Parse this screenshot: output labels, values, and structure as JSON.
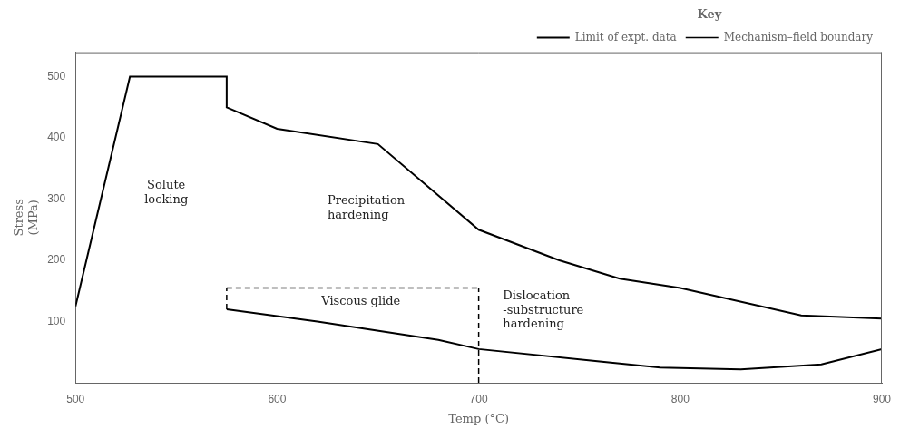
{
  "chart_data": {
    "type": "line",
    "xlabel": "Temp (°C)",
    "ylabel": "Stress\n(MPa)",
    "xlim": [
      500,
      900
    ],
    "xticks": [
      500,
      600,
      700,
      800,
      900
    ],
    "ylim": [
      0,
      540
    ],
    "yticks": [
      100,
      200,
      300,
      400,
      500
    ],
    "grid": false,
    "legend": "upper right",
    "legend_title": "Key",
    "series": [
      {
        "name": "Limit of expt. data",
        "color": "#000000",
        "line_style": "solid",
        "x": [
          500,
          527,
          575,
          575,
          600,
          650,
          700,
          740,
          770,
          800,
          860,
          900
        ],
        "values": [
          125,
          500,
          500,
          450,
          415,
          390,
          250,
          200,
          170,
          155,
          110,
          105
        ]
      },
      {
        "name": "Limit of expt. data",
        "color": "#000000",
        "line_style": "solid",
        "x": [
          575,
          620,
          680,
          700,
          760,
          790,
          830,
          870,
          900
        ],
        "values": [
          120,
          100,
          70,
          55,
          35,
          25,
          22,
          30,
          55
        ]
      },
      {
        "name": "Mechanism–field boundary",
        "color": "#000000",
        "line_style": "dashed",
        "x": [
          575,
          575
        ],
        "values": [
          120,
          155
        ]
      },
      {
        "name": "Mechanism–field boundary",
        "color": "#000000",
        "line_style": "dashed",
        "x": [
          700,
          700
        ],
        "values": [
          0,
          155
        ]
      },
      {
        "name": "Mechanism–field boundary",
        "color": "#000000",
        "line_style": "dashed",
        "x": [
          575,
          700
        ],
        "values": [
          155,
          155
        ]
      }
    ],
    "annotations": [
      {
        "text": "Solute\nlocking",
        "x": 545,
        "y": 310,
        "align": "center"
      },
      {
        "text": "Precipitation\nhardening",
        "x": 625,
        "y": 285,
        "align": "left"
      },
      {
        "text": "Viscous glide",
        "x": 622,
        "y": 132,
        "align": "left"
      },
      {
        "text": "Dislocation\n-substructure\nhardening",
        "x": 712,
        "y": 118,
        "align": "left"
      }
    ]
  }
}
